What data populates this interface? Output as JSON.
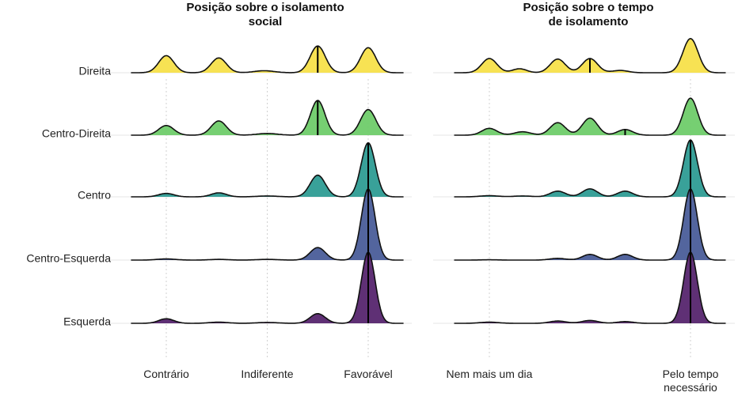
{
  "chart_data": {
    "type": "ridgeline",
    "rows": [
      "Direita",
      "Centro-Direita",
      "Centro",
      "Centro-Esquerda",
      "Esquerda"
    ],
    "row_colors": [
      "#f7e04a",
      "#6fcc6a",
      "#2e9c93",
      "#4a5d99",
      "#56256e"
    ],
    "grid": true,
    "panels": [
      {
        "title": [
          "Posição sobre o isolamento",
          "social"
        ],
        "x_range": [
          0.65,
          3.35
        ],
        "x_ticks": [
          {
            "value": 1,
            "label": [
              "Contrário"
            ]
          },
          {
            "value": 2,
            "label": [
              "Indiferente"
            ]
          },
          {
            "value": 3,
            "label": [
              "Favorável"
            ]
          }
        ],
        "densities": [
          {
            "row": "Direita",
            "median_lines": [
              2.5
            ],
            "peaks": [
              {
                "x": 1.0,
                "h": 0.3,
                "w": 0.075
              },
              {
                "x": 1.52,
                "h": 0.26,
                "w": 0.075
              },
              {
                "x": 1.97,
                "h": 0.035,
                "w": 0.1
              },
              {
                "x": 2.5,
                "h": 0.47,
                "w": 0.075
              },
              {
                "x": 3.0,
                "h": 0.44,
                "w": 0.075
              }
            ]
          },
          {
            "row": "Centro-Direita",
            "median_lines": [
              2.5
            ],
            "peaks": [
              {
                "x": 1.0,
                "h": 0.17,
                "w": 0.075
              },
              {
                "x": 1.52,
                "h": 0.25,
                "w": 0.075
              },
              {
                "x": 2.0,
                "h": 0.03,
                "w": 0.1
              },
              {
                "x": 2.5,
                "h": 0.61,
                "w": 0.072
              },
              {
                "x": 3.0,
                "h": 0.45,
                "w": 0.075
              }
            ]
          },
          {
            "row": "Centro",
            "median_lines": [
              3.0
            ],
            "peaks": [
              {
                "x": 1.0,
                "h": 0.06,
                "w": 0.075
              },
              {
                "x": 1.52,
                "h": 0.07,
                "w": 0.075
              },
              {
                "x": 2.0,
                "h": 0.015,
                "w": 0.1
              },
              {
                "x": 2.5,
                "h": 0.38,
                "w": 0.075
              },
              {
                "x": 3.0,
                "h": 0.95,
                "w": 0.07
              }
            ]
          },
          {
            "row": "Centro-Esquerda",
            "median_lines": [
              3.0
            ],
            "peaks": [
              {
                "x": 1.0,
                "h": 0.02,
                "w": 0.09
              },
              {
                "x": 1.52,
                "h": 0.012,
                "w": 0.09
              },
              {
                "x": 2.0,
                "h": 0.012,
                "w": 0.1
              },
              {
                "x": 2.5,
                "h": 0.22,
                "w": 0.075
              },
              {
                "x": 3.0,
                "h": 1.25,
                "w": 0.068
              }
            ]
          },
          {
            "row": "Esquerda",
            "median_lines": [
              3.0
            ],
            "peaks": [
              {
                "x": 1.0,
                "h": 0.08,
                "w": 0.075
              },
              {
                "x": 1.52,
                "h": 0.02,
                "w": 0.09
              },
              {
                "x": 2.0,
                "h": 0.015,
                "w": 0.1
              },
              {
                "x": 2.5,
                "h": 0.17,
                "w": 0.075
              },
              {
                "x": 3.0,
                "h": 1.25,
                "w": 0.068
              }
            ]
          }
        ]
      },
      {
        "title": [
          "Posição sobre o tempo",
          "de isolamento"
        ],
        "x_range": [
          0.65,
          3.35
        ],
        "x_ticks": [
          {
            "value": 1,
            "label": [
              "Nem mais um dia"
            ]
          },
          {
            "value": 3,
            "label": [
              "Pelo tempo",
              "necessário"
            ]
          }
        ],
        "densities": [
          {
            "row": "Direita",
            "median_lines": [
              2.0
            ],
            "peaks": [
              {
                "x": 1.0,
                "h": 0.25,
                "w": 0.075
              },
              {
                "x": 1.3,
                "h": 0.07,
                "w": 0.07
              },
              {
                "x": 1.68,
                "h": 0.24,
                "w": 0.075
              },
              {
                "x": 2.0,
                "h": 0.25,
                "w": 0.075
              },
              {
                "x": 2.3,
                "h": 0.04,
                "w": 0.08
              },
              {
                "x": 3.0,
                "h": 0.6,
                "w": 0.075
              }
            ]
          },
          {
            "row": "Centro-Direita",
            "median_lines": [
              2.35
            ],
            "peaks": [
              {
                "x": 1.0,
                "h": 0.12,
                "w": 0.075
              },
              {
                "x": 1.33,
                "h": 0.06,
                "w": 0.08
              },
              {
                "x": 1.68,
                "h": 0.22,
                "w": 0.075
              },
              {
                "x": 2.0,
                "h": 0.3,
                "w": 0.075
              },
              {
                "x": 2.35,
                "h": 0.1,
                "w": 0.075
              },
              {
                "x": 3.0,
                "h": 0.65,
                "w": 0.072
              }
            ]
          },
          {
            "row": "Centro",
            "median_lines": [
              3.0
            ],
            "peaks": [
              {
                "x": 1.0,
                "h": 0.02,
                "w": 0.09
              },
              {
                "x": 1.33,
                "h": 0.015,
                "w": 0.09
              },
              {
                "x": 1.68,
                "h": 0.1,
                "w": 0.075
              },
              {
                "x": 2.0,
                "h": 0.14,
                "w": 0.075
              },
              {
                "x": 2.35,
                "h": 0.1,
                "w": 0.075
              },
              {
                "x": 3.0,
                "h": 1.0,
                "w": 0.07
              }
            ]
          },
          {
            "row": "Centro-Esquerda",
            "median_lines": [
              3.0
            ],
            "peaks": [
              {
                "x": 1.0,
                "h": 0.005,
                "w": 0.09
              },
              {
                "x": 1.68,
                "h": 0.03,
                "w": 0.08
              },
              {
                "x": 2.0,
                "h": 0.1,
                "w": 0.075
              },
              {
                "x": 2.35,
                "h": 0.1,
                "w": 0.075
              },
              {
                "x": 3.0,
                "h": 1.25,
                "w": 0.068
              }
            ]
          },
          {
            "row": "Esquerda",
            "median_lines": [
              3.0
            ],
            "peaks": [
              {
                "x": 1.0,
                "h": 0.02,
                "w": 0.09
              },
              {
                "x": 1.68,
                "h": 0.04,
                "w": 0.08
              },
              {
                "x": 2.0,
                "h": 0.05,
                "w": 0.08
              },
              {
                "x": 2.35,
                "h": 0.03,
                "w": 0.08
              },
              {
                "x": 3.0,
                "h": 1.25,
                "w": 0.068
              }
            ]
          }
        ]
      }
    ]
  }
}
